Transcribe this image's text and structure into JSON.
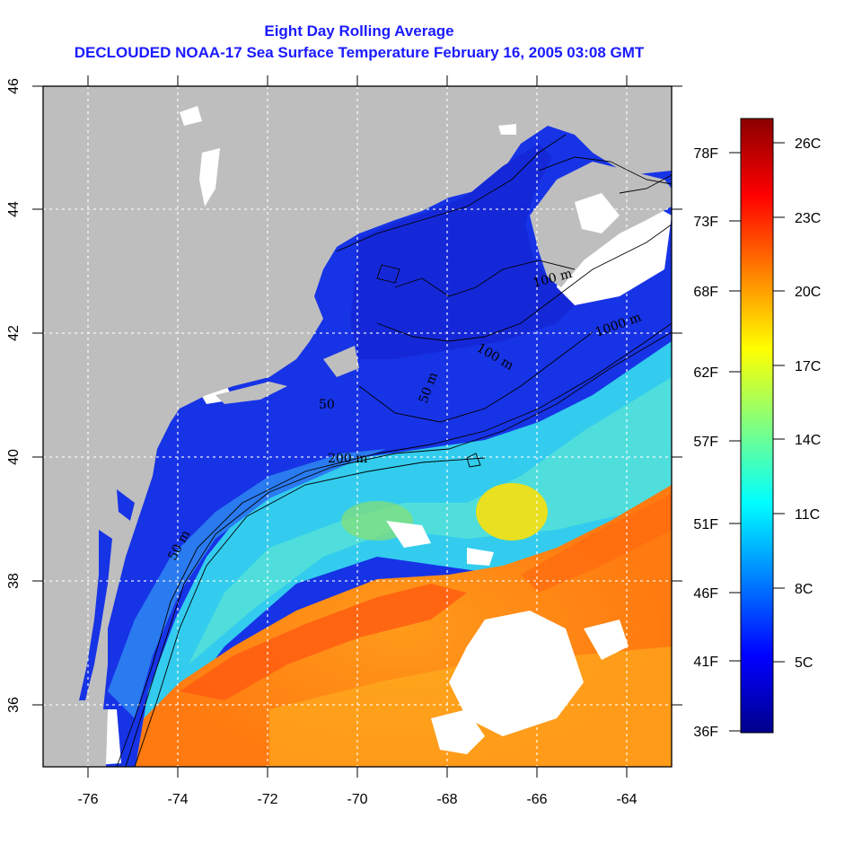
{
  "title": {
    "line1": "Eight Day Rolling Average",
    "line2": "DECLOUDED NOAA-17 Sea Surface Temperature February 16, 2005 03:08 GMT"
  },
  "colors": {
    "title": "#1a1aff",
    "land": "#bebebe",
    "cloud_mask": "#ffffff",
    "grid": "#ffffff",
    "contour": "#000000",
    "frame": "#000000"
  },
  "map": {
    "longitude_ticks": [
      "-76",
      "-74",
      "-72",
      "-70",
      "-68",
      "-66",
      "-64"
    ],
    "latitude_ticks": [
      "36",
      "38",
      "40",
      "42",
      "44",
      "46"
    ],
    "longitude_range": [
      -77,
      -63
    ],
    "latitude_range": [
      35,
      46
    ],
    "contour_labels": [
      "50 m",
      "200 m",
      "1000 m",
      "100 m",
      "50 m",
      "100 m",
      "50"
    ]
  },
  "colorbar": {
    "fahrenheit_ticks": [
      "78F",
      "73F",
      "68F",
      "62F",
      "57F",
      "51F",
      "46F",
      "41F",
      "36F"
    ],
    "celsius_ticks": [
      "26C",
      "23C",
      "20C",
      "17C",
      "14C",
      "11C",
      "8C",
      "5C"
    ],
    "gradient_stops": [
      "#00008b",
      "#0000ff",
      "#0080ff",
      "#00ffff",
      "#80ff80",
      "#ffff00",
      "#ff8000",
      "#ff0000",
      "#8b0000"
    ]
  }
}
